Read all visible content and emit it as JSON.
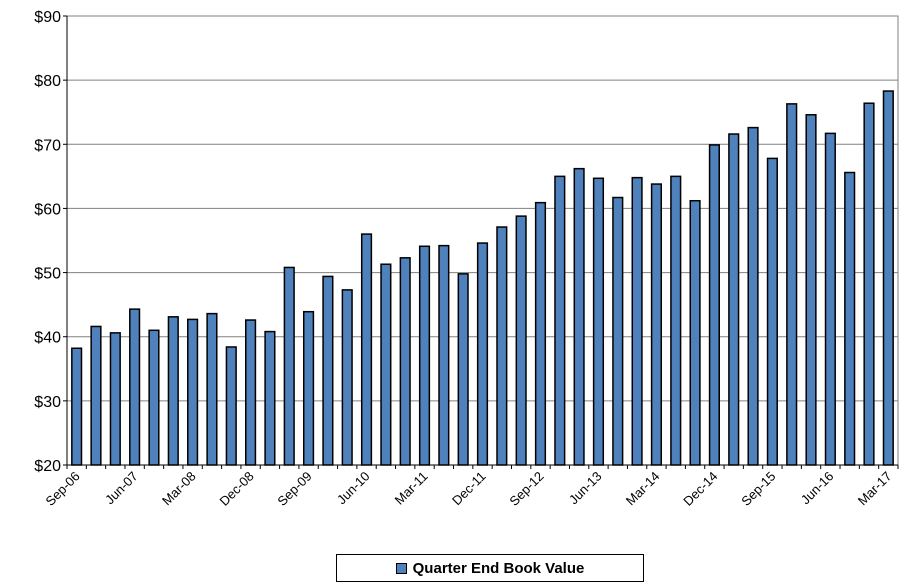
{
  "chart_data": {
    "type": "bar",
    "categories": [
      "Sep-06",
      "Dec-06",
      "Mar-07",
      "Jun-07",
      "Sep-07",
      "Dec-07",
      "Mar-08",
      "Jun-08",
      "Sep-08",
      "Dec-08",
      "Mar-09",
      "Jun-09",
      "Sep-09",
      "Dec-09",
      "Mar-10",
      "Jun-10",
      "Sep-10",
      "Dec-10",
      "Mar-11",
      "Jun-11",
      "Sep-11",
      "Dec-11",
      "Mar-12",
      "Jun-12",
      "Sep-12",
      "Dec-12",
      "Mar-13",
      "Jun-13",
      "Sep-13",
      "Dec-13",
      "Mar-14",
      "Jun-14",
      "Sep-14",
      "Dec-14",
      "Mar-15",
      "Jun-15",
      "Sep-15",
      "Dec-15",
      "Mar-16",
      "Jun-16",
      "Sep-16",
      "Dec-16",
      "Mar-17"
    ],
    "tick_labels": [
      "Sep-06",
      "Jun-07",
      "Mar-08",
      "Dec-08",
      "Sep-09",
      "Jun-10",
      "Mar-11",
      "Dec-11",
      "Sep-12",
      "Jun-13",
      "Mar-14",
      "Dec-14",
      "Sep-15",
      "Jun-16",
      "Mar-17"
    ],
    "series": [
      {
        "name": "Quarter End Book Value",
        "values": [
          38.2,
          41.6,
          40.6,
          44.3,
          41.0,
          43.1,
          42.7,
          43.6,
          38.4,
          42.6,
          40.8,
          50.8,
          43.9,
          49.4,
          47.3,
          56.0,
          51.3,
          52.3,
          54.1,
          54.2,
          49.8,
          54.6,
          57.1,
          58.8,
          60.9,
          65.0,
          66.2,
          64.7,
          61.7,
          64.8,
          63.8,
          65.0,
          61.2,
          69.9,
          71.6,
          72.6,
          67.8,
          76.3,
          74.6,
          71.7,
          65.6,
          76.4,
          78.3
        ]
      }
    ],
    "y_tick_labels": [
      "$20",
      "$30",
      "$40",
      "$50",
      "$60",
      "$70",
      "$80",
      "$90"
    ],
    "ylim": [
      20,
      90
    ],
    "y_step": 10,
    "grid": true,
    "legend_position": "bottom",
    "colors": {
      "bar_fill": "#4f81bd",
      "bar_stroke": "#000000",
      "grid": "#808080"
    }
  },
  "legend": {
    "label": "Quarter End Book Value"
  }
}
